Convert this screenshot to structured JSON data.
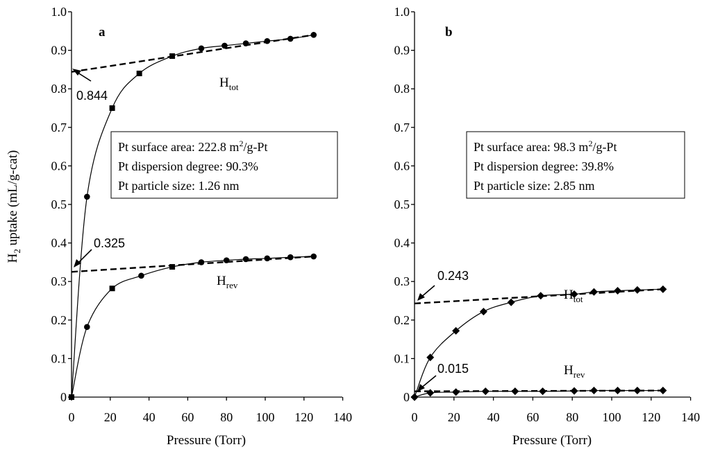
{
  "chart_data": [
    {
      "panel": "a",
      "type": "line",
      "xlabel": "Pressure (Torr)",
      "ylabel_main": "H",
      "ylabel_sub": "2",
      "ylabel_rest": " uptake (mL/g-cat)",
      "xlim": [
        0,
        140
      ],
      "ylim": [
        0,
        1.0
      ],
      "xticks": [
        "0",
        "20",
        "40",
        "60",
        "80",
        "100",
        "120",
        "140"
      ],
      "yticks": [
        "0",
        "0.1",
        "0.2",
        "0.3",
        "0.4",
        "0.5",
        "0.6",
        "0.7",
        "0.8",
        "0.9",
        "1.0"
      ],
      "series": [
        {
          "name": "H_tot",
          "label_main": "H",
          "label_sub": "tot",
          "marker": "square",
          "x": [
            0,
            8,
            21,
            35,
            52,
            67,
            79,
            90,
            101,
            113,
            125
          ],
          "y": [
            0,
            0.52,
            0.75,
            0.84,
            0.885,
            0.905,
            0.912,
            0.918,
            0.924,
            0.93,
            0.94
          ],
          "marker_shapes": [
            "circle",
            "circle",
            "square",
            "square",
            "square",
            "circle",
            "circle",
            "circle",
            "circle",
            "circle",
            "circle"
          ],
          "extrapolation": {
            "x": [
              0,
              125
            ],
            "y": [
              0.844,
              0.94
            ]
          },
          "intercept": "0.844"
        },
        {
          "name": "H_rev",
          "label_main": "H",
          "label_sub": "rev",
          "marker": "circle",
          "x": [
            0,
            8,
            21,
            36,
            52,
            67,
            80,
            90,
            101,
            113,
            125
          ],
          "y": [
            0,
            0.182,
            0.282,
            0.315,
            0.338,
            0.35,
            0.355,
            0.358,
            0.36,
            0.363,
            0.365
          ],
          "marker_shapes": [
            "square",
            "circle",
            "square",
            "circle",
            "square",
            "circle",
            "circle",
            "circle",
            "circle",
            "circle",
            "circle"
          ],
          "extrapolation": {
            "x": [
              0,
              125
            ],
            "y": [
              0.325,
              0.365
            ]
          },
          "intercept": "0.325"
        }
      ],
      "info_box": [
        {
          "pre": "Pt surface area: 222.8 m",
          "sup": "2",
          "post": "/g-Pt"
        },
        {
          "pre": "Pt dispersion degree: 90.3%",
          "sup": "",
          "post": ""
        },
        {
          "pre": "Pt particle size: 1.26 nm",
          "sup": "",
          "post": ""
        }
      ]
    },
    {
      "panel": "b",
      "type": "line",
      "xlabel": "Pressure (Torr)",
      "xlim": [
        0,
        140
      ],
      "ylim": [
        0,
        1.0
      ],
      "xticks": [
        "0",
        "20",
        "40",
        "60",
        "80",
        "100",
        "120",
        "140"
      ],
      "yticks": [
        "0",
        "0.1",
        "0.2",
        "0.3",
        "0.4",
        "0.5",
        "0.6",
        "0.7",
        "0.8",
        "0.9",
        "1.0"
      ],
      "series": [
        {
          "name": "H_tot",
          "label_main": "H",
          "label_sub": "tot",
          "marker": "diamond",
          "x": [
            0,
            8,
            21,
            35,
            49,
            64,
            81,
            91,
            103,
            113,
            126
          ],
          "y": [
            0,
            0.103,
            0.172,
            0.222,
            0.246,
            0.263,
            0.267,
            0.273,
            0.276,
            0.278,
            0.28
          ],
          "marker_shapes": [
            "diamond",
            "diamond",
            "diamond",
            "diamond",
            "diamond",
            "diamond",
            "diamond",
            "diamond",
            "diamond",
            "diamond",
            "diamond"
          ],
          "extrapolation": {
            "x": [
              0,
              126
            ],
            "y": [
              0.243,
              0.28
            ]
          },
          "intercept": "0.243"
        },
        {
          "name": "H_rev",
          "label_main": "H",
          "label_sub": "rev",
          "marker": "diamond",
          "x": [
            0,
            8,
            21,
            36,
            51,
            65,
            81,
            91,
            103,
            113,
            126
          ],
          "y": [
            0,
            0.011,
            0.013,
            0.015,
            0.015,
            0.015,
            0.016,
            0.017,
            0.017,
            0.017,
            0.017
          ],
          "marker_shapes": [
            "diamond",
            "diamond",
            "diamond",
            "diamond",
            "diamond",
            "diamond",
            "diamond",
            "diamond",
            "diamond",
            "diamond",
            "diamond"
          ],
          "extrapolation": {
            "x": [
              0,
              126
            ],
            "y": [
              0.015,
              0.017
            ]
          },
          "intercept": "0.015"
        }
      ],
      "info_box": [
        {
          "pre": "Pt surface area: 98.3 m",
          "sup": "2",
          "post": "/g-Pt"
        },
        {
          "pre": "Pt dispersion degree: 39.8%",
          "sup": "",
          "post": ""
        },
        {
          "pre": "Pt particle size: 2.85 nm",
          "sup": "",
          "post": ""
        }
      ]
    }
  ]
}
